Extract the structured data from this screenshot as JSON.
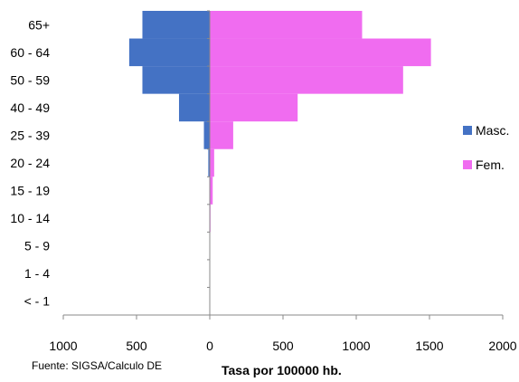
{
  "chart_data": {
    "type": "bar",
    "orientation": "horizontal-population-pyramid",
    "categories": [
      "65+",
      "60 - 64",
      "50 - 59",
      "40 - 49",
      "25 - 39",
      "20 - 24",
      "15 - 19",
      "10 - 14",
      "5 - 9",
      "1 - 4",
      "< - 1"
    ],
    "series": [
      {
        "name": "Masc.",
        "color": "#4472C4",
        "values": [
          460,
          550,
          460,
          210,
          40,
          10,
          3,
          2,
          1,
          1,
          1
        ]
      },
      {
        "name": "Fem.",
        "color": "#F06CF0",
        "values": [
          1040,
          1510,
          1320,
          600,
          160,
          30,
          20,
          5,
          3,
          2,
          2
        ]
      }
    ],
    "x_ticks": [
      "1000",
      "500",
      "0",
      "500",
      "1000",
      "1500",
      "2000"
    ],
    "xlim": [
      -1000,
      2000
    ],
    "xlabel": "Tasa por 100000 hb.",
    "source": "Fuente: SIGSA/Calculo DE",
    "legend_position": "right",
    "grid": false
  }
}
